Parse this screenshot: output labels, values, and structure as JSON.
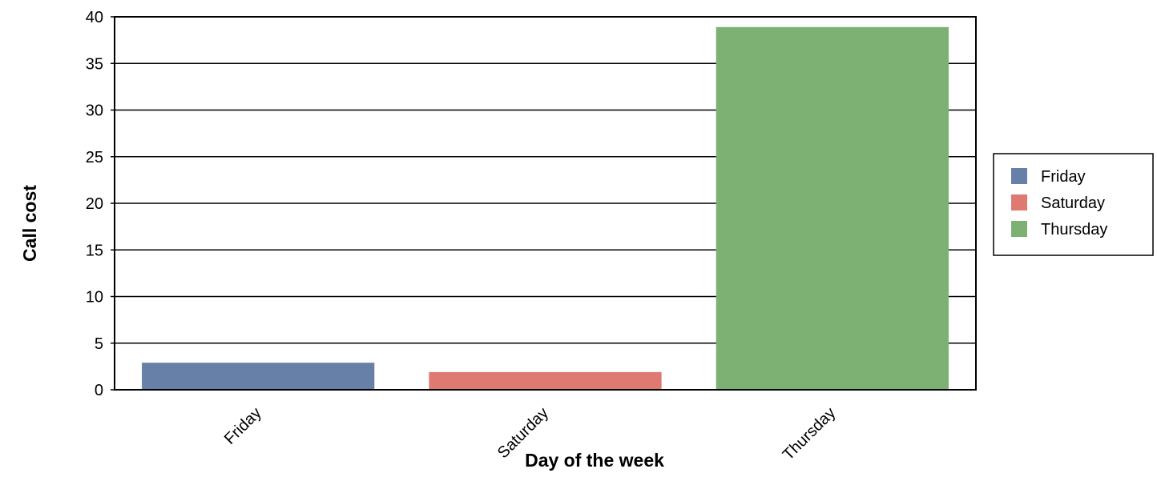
{
  "chart_data": {
    "type": "bar",
    "title": "",
    "xlabel": "Day of the week",
    "ylabel": "Call cost",
    "categories": [
      "Friday",
      "Saturday",
      "Thursday"
    ],
    "values": [
      2.9,
      1.9,
      38.9
    ],
    "colors": [
      "#6680a8",
      "#df7a72",
      "#7cb173"
    ],
    "ylim": [
      0,
      40
    ],
    "yticks": [
      0,
      5,
      10,
      15,
      20,
      25,
      30,
      35,
      40
    ],
    "grid": true,
    "legend": {
      "position": "right",
      "entries": [
        "Friday",
        "Saturday",
        "Thursday"
      ]
    }
  }
}
